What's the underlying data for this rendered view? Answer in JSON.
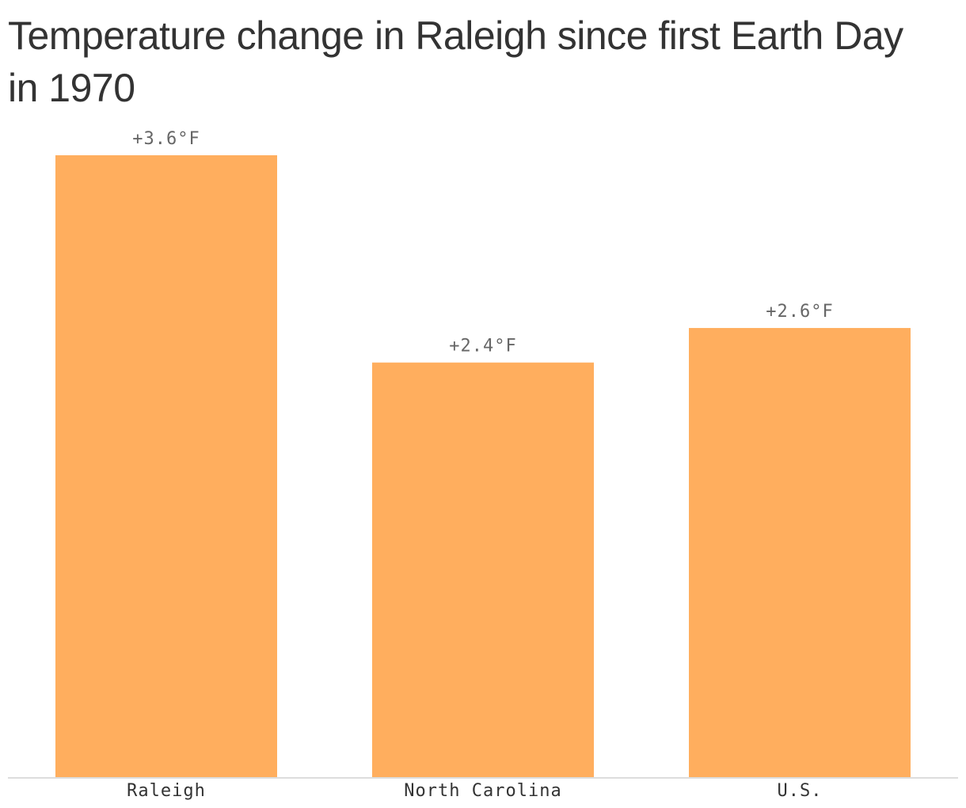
{
  "chart_data": {
    "type": "bar",
    "title": "Temperature change in Raleigh since first Earth Day in 1970",
    "categories": [
      "Raleigh",
      "North Carolina",
      "U.S."
    ],
    "values": [
      3.6,
      2.4,
      2.6
    ],
    "data_labels": [
      "+3.6°F",
      "+2.4°F",
      "+2.6°F"
    ],
    "unit": "°F",
    "xlabel": "",
    "ylabel": "",
    "ylim": [
      0,
      3.6
    ],
    "grid": false,
    "bar_color": "#FFAE5E",
    "baseline_color": "#DDDDDD"
  }
}
